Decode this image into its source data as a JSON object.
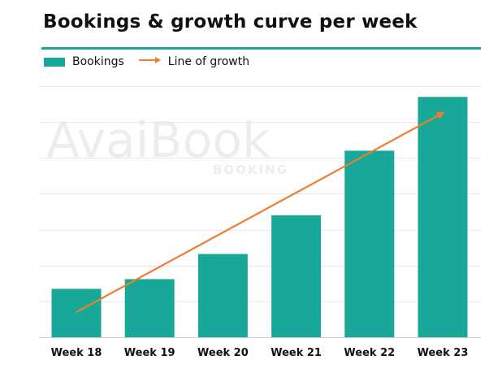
{
  "chart_data": {
    "type": "bar",
    "title": "Bookings & growth curve per week",
    "categories": [
      "Week 18",
      "Week 19",
      "Week 20",
      "Week 21",
      "Week 22",
      "Week 23"
    ],
    "series": [
      {
        "name": "Bookings",
        "type": "bar",
        "values": [
          13.5,
          16.2,
          23.2,
          34.0,
          52.0,
          67.0
        ],
        "color": "#17a89a"
      }
    ],
    "growth_line": {
      "name": "Line of growth",
      "color": "#ef7d2e",
      "start": {
        "x": "Week 18",
        "y": 7.0
      },
      "end": {
        "x": "Week 23",
        "y": 62.5
      }
    },
    "xlabel": "",
    "ylabel": "",
    "ylim": [
      0,
      70
    ],
    "y_gridlines": [
      0,
      10,
      20,
      30,
      40,
      50,
      60,
      70
    ],
    "grid": true,
    "legend": {
      "placement": "top-left",
      "items": [
        "Bookings",
        "Line of growth"
      ]
    },
    "watermark": {
      "main": "AvaiBook",
      "sub": "BOOKING"
    }
  }
}
